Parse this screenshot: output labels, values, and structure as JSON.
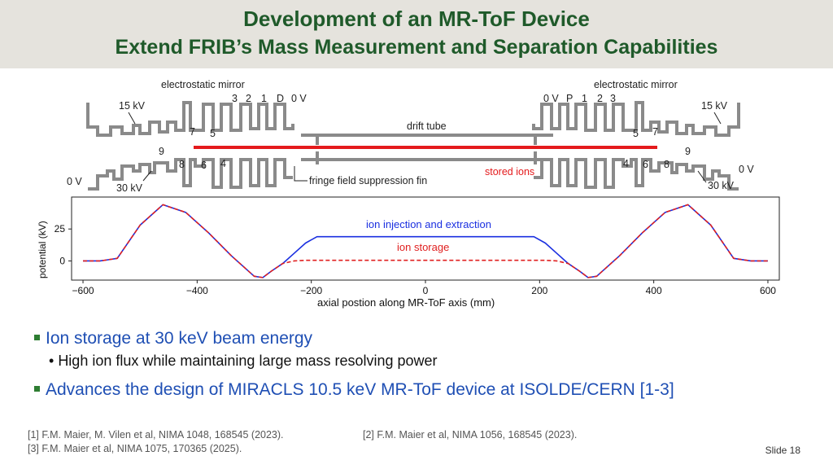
{
  "title": {
    "line1": "Development of an MR-ToF Device",
    "line2": "Extend FRIB’s Mass Measurement and Separation Capabilities"
  },
  "diagram": {
    "left_mirror_label": "electrostatic mirror",
    "right_mirror_label": "electrostatic mirror",
    "left_electrodes_top": [
      "3",
      "2",
      "1",
      "D",
      "0 V"
    ],
    "right_electrodes_top": [
      "0 V",
      "P",
      "1",
      "2",
      "3"
    ],
    "drift_tube": "drift tube",
    "stored_ions": "stored ions",
    "fringe_fin": "fringe field suppression fin",
    "left_labels": {
      "kv15": "15 kV",
      "n7": "7",
      "n5": "5",
      "n9": "9",
      "n8": "8",
      "n6": "6",
      "n4": "4",
      "v0": "0 V",
      "kv30": "30 kV"
    },
    "right_labels": {
      "kv15": "15 kV",
      "n5": "5",
      "n7": "7",
      "n9": "9",
      "n4": "4",
      "n6": "6",
      "n8": "8",
      "v0": "0 V",
      "kv30": "30 kV"
    }
  },
  "chart_data": {
    "type": "line",
    "title": "",
    "xlabel": "axial postion along MR-ToF axis (mm)",
    "ylabel": "potential (kV)",
    "xlim": [
      -620,
      620
    ],
    "ylim": [
      -15,
      50
    ],
    "xticks": [
      "−600",
      "−400",
      "−200",
      "0",
      "200",
      "400",
      "600"
    ],
    "yticks": [
      "0",
      "25"
    ],
    "series": [
      {
        "name": "ion injection and extraction",
        "color": "#1a2fe0",
        "style": "solid",
        "x": [
          -600,
          -570,
          -540,
          -500,
          -460,
          -420,
          -380,
          -340,
          -300,
          -285,
          -270,
          -250,
          -230,
          -210,
          -190,
          -100,
          0,
          100,
          190,
          210,
          230,
          250,
          270,
          285,
          300,
          340,
          380,
          420,
          460,
          500,
          540,
          570,
          600
        ],
        "y": [
          0,
          0,
          2,
          28,
          44,
          38,
          22,
          4,
          -12,
          -13,
          -8,
          -2,
          6,
          14,
          19,
          19,
          19,
          19,
          19,
          14,
          6,
          -2,
          -8,
          -13,
          -12,
          4,
          22,
          38,
          44,
          28,
          2,
          0,
          0
        ]
      },
      {
        "name": "ion storage",
        "color": "#e02020",
        "style": "dashed",
        "x": [
          -600,
          -570,
          -540,
          -500,
          -460,
          -420,
          -380,
          -340,
          -300,
          -285,
          -270,
          -250,
          -230,
          -210,
          -100,
          0,
          100,
          210,
          230,
          250,
          270,
          285,
          300,
          340,
          380,
          420,
          460,
          500,
          540,
          570,
          600
        ],
        "y": [
          0,
          0,
          2,
          28,
          44,
          38,
          22,
          4,
          -12,
          -13,
          -8,
          -2,
          0,
          0.5,
          0.5,
          0.5,
          0.5,
          0.5,
          0,
          -2,
          -8,
          -13,
          -12,
          4,
          22,
          38,
          44,
          28,
          2,
          0,
          0
        ]
      }
    ]
  },
  "bullets": [
    {
      "text": "Ion storage at 30 keV beam energy"
    },
    {
      "text": "High ion flux while maintaining large mass resolving power"
    },
    {
      "text": "Advances the design of MIRACLS 10.5 keV MR-ToF device at ISOLDE/CERN [1-3]"
    }
  ],
  "references": {
    "r1": "[1] F.M. Maier, M. Vilen et al, NIMA 1048, 168545 (2023).",
    "r2": "[2] F.M. Maier et al, NIMA 1056, 168545 (2023).",
    "r3": "[3] F.M. Maier et al, NIMA 1075, 170365 (2025)."
  },
  "slide_number": "Slide 18"
}
